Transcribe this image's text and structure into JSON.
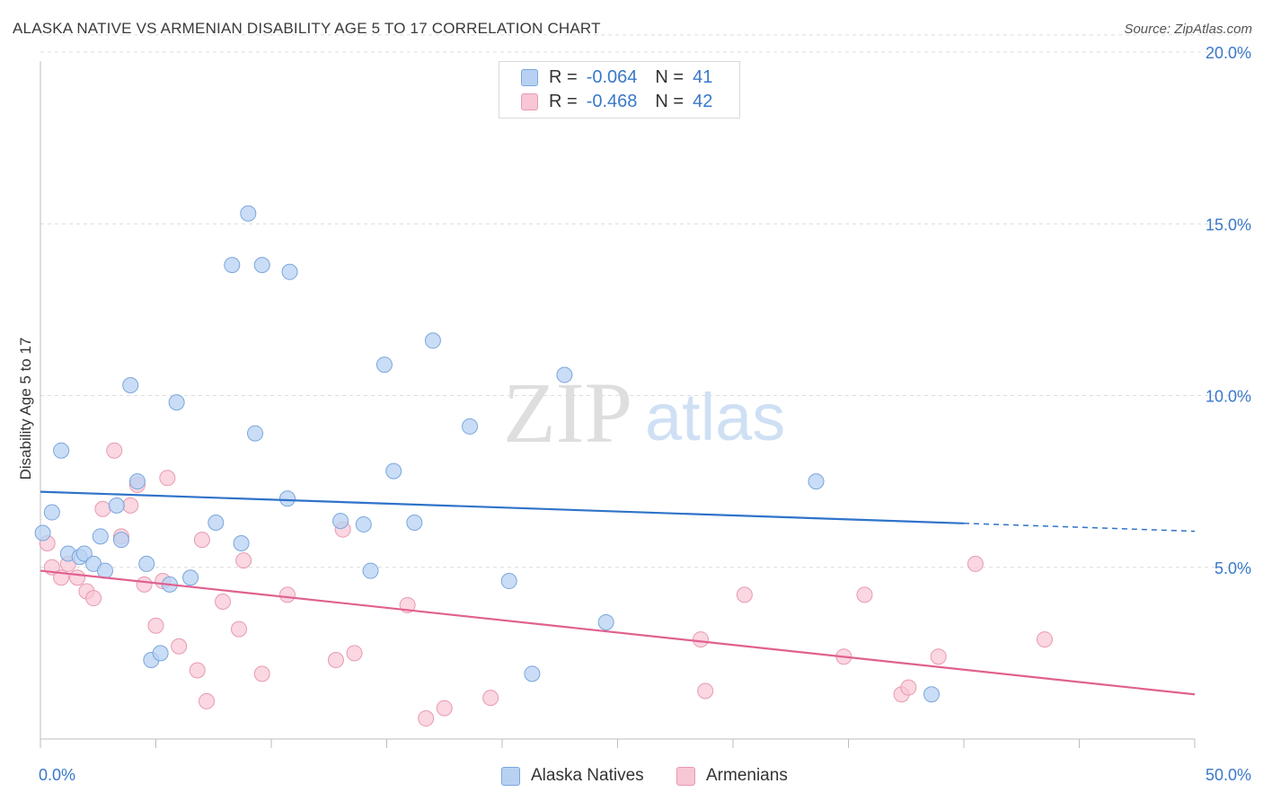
{
  "header": {
    "title": "ALASKA NATIVE VS ARMENIAN DISABILITY AGE 5 TO 17 CORRELATION CHART",
    "source": "Source: ZipAtlas.com"
  },
  "watermark": {
    "zip": "ZIP",
    "atlas": "atlas"
  },
  "legend": {
    "rows": [
      {
        "r_label": "R =",
        "r_value": "-0.064",
        "n_label": "N =",
        "n_value": "41"
      },
      {
        "r_label": "R =",
        "r_value": "-0.468",
        "n_label": "N =",
        "n_value": "42"
      }
    ]
  },
  "bottom_legend": [
    "Alaska Natives",
    "Armenians"
  ],
  "colors": {
    "blue_fill": "#b8d1f3",
    "blue_stroke": "#7aa6dc",
    "blue_line": "#2f73c9",
    "pink_fill": "#f8c6d4",
    "pink_stroke": "#e89ab2",
    "pink_line": "#e0608f",
    "tick_label": "#3a78c9",
    "grid": "#dcdcdc"
  },
  "chart_data": {
    "type": "scatter",
    "title": "ALASKA NATIVE VS ARMENIAN DISABILITY AGE 5 TO 17 CORRELATION CHART",
    "xlabel": "",
    "ylabel": "Disability Age 5 to 17",
    "xlim": [
      0,
      50
    ],
    "ylim": [
      0,
      20.5
    ],
    "x_tick_labels": [
      "0.0%",
      "50.0%"
    ],
    "y_ticks": [
      5,
      10,
      15,
      20
    ],
    "y_tick_labels": [
      "5.0%",
      "10.0%",
      "15.0%",
      "20.0%"
    ],
    "grid": true,
    "legend_position": "top-center",
    "series": [
      {
        "name": "Alaska Natives",
        "r": -0.064,
        "n": 41,
        "trend": {
          "x_start": 0,
          "y_start": 7.2,
          "x_solid_end": 40,
          "y_solid_end": 6.28,
          "x_end": 50,
          "y_end": 6.05
        },
        "points": [
          [
            0.1,
            6.0
          ],
          [
            0.5,
            6.6
          ],
          [
            0.9,
            8.4
          ],
          [
            1.2,
            5.4
          ],
          [
            1.7,
            5.3
          ],
          [
            1.9,
            5.4
          ],
          [
            2.3,
            5.1
          ],
          [
            2.6,
            5.9
          ],
          [
            2.8,
            4.9
          ],
          [
            3.3,
            6.8
          ],
          [
            3.5,
            5.8
          ],
          [
            3.9,
            10.3
          ],
          [
            4.2,
            7.5
          ],
          [
            4.6,
            5.1
          ],
          [
            4.8,
            2.3
          ],
          [
            5.2,
            2.5
          ],
          [
            5.6,
            4.5
          ],
          [
            5.9,
            9.8
          ],
          [
            6.5,
            4.7
          ],
          [
            7.6,
            6.3
          ],
          [
            8.3,
            13.8
          ],
          [
            8.7,
            5.7
          ],
          [
            9.0,
            15.3
          ],
          [
            9.3,
            8.9
          ],
          [
            9.6,
            13.8
          ],
          [
            10.7,
            7.0
          ],
          [
            10.8,
            13.6
          ],
          [
            13.0,
            6.35
          ],
          [
            14.0,
            6.25
          ],
          [
            14.3,
            4.9
          ],
          [
            14.9,
            10.9
          ],
          [
            15.3,
            7.8
          ],
          [
            16.2,
            6.3
          ],
          [
            17.0,
            11.6
          ],
          [
            18.6,
            9.1
          ],
          [
            20.3,
            4.6
          ],
          [
            21.3,
            1.9
          ],
          [
            22.7,
            10.6
          ],
          [
            24.5,
            3.4
          ],
          [
            33.6,
            7.5
          ],
          [
            38.6,
            1.3
          ]
        ]
      },
      {
        "name": "Armenians",
        "r": -0.468,
        "n": 42,
        "trend": {
          "x_start": 0,
          "y_start": 4.9,
          "x_end": 50,
          "y_end": 1.3
        },
        "points": [
          [
            0.3,
            5.7
          ],
          [
            0.5,
            5.0
          ],
          [
            0.9,
            4.7
          ],
          [
            1.2,
            5.1
          ],
          [
            1.6,
            4.7
          ],
          [
            2.0,
            4.3
          ],
          [
            2.3,
            4.1
          ],
          [
            2.7,
            6.7
          ],
          [
            3.2,
            8.4
          ],
          [
            3.5,
            5.9
          ],
          [
            3.9,
            6.8
          ],
          [
            4.2,
            7.4
          ],
          [
            4.5,
            4.5
          ],
          [
            5.0,
            3.3
          ],
          [
            5.3,
            4.6
          ],
          [
            5.5,
            7.6
          ],
          [
            6.0,
            2.7
          ],
          [
            6.8,
            2.0
          ],
          [
            7.0,
            5.8
          ],
          [
            7.2,
            1.1
          ],
          [
            7.9,
            4.0
          ],
          [
            8.6,
            3.2
          ],
          [
            8.8,
            5.2
          ],
          [
            9.6,
            1.9
          ],
          [
            10.7,
            4.2
          ],
          [
            12.8,
            2.3
          ],
          [
            13.1,
            6.1
          ],
          [
            13.6,
            2.5
          ],
          [
            15.9,
            3.9
          ],
          [
            16.7,
            0.6
          ],
          [
            17.5,
            0.9
          ],
          [
            19.5,
            1.2
          ],
          [
            28.6,
            2.9
          ],
          [
            28.8,
            1.4
          ],
          [
            30.5,
            4.2
          ],
          [
            34.8,
            2.4
          ],
          [
            35.7,
            4.2
          ],
          [
            37.3,
            1.3
          ],
          [
            37.6,
            1.5
          ],
          [
            38.9,
            2.4
          ],
          [
            40.5,
            5.1
          ],
          [
            43.5,
            2.9
          ]
        ]
      }
    ]
  }
}
